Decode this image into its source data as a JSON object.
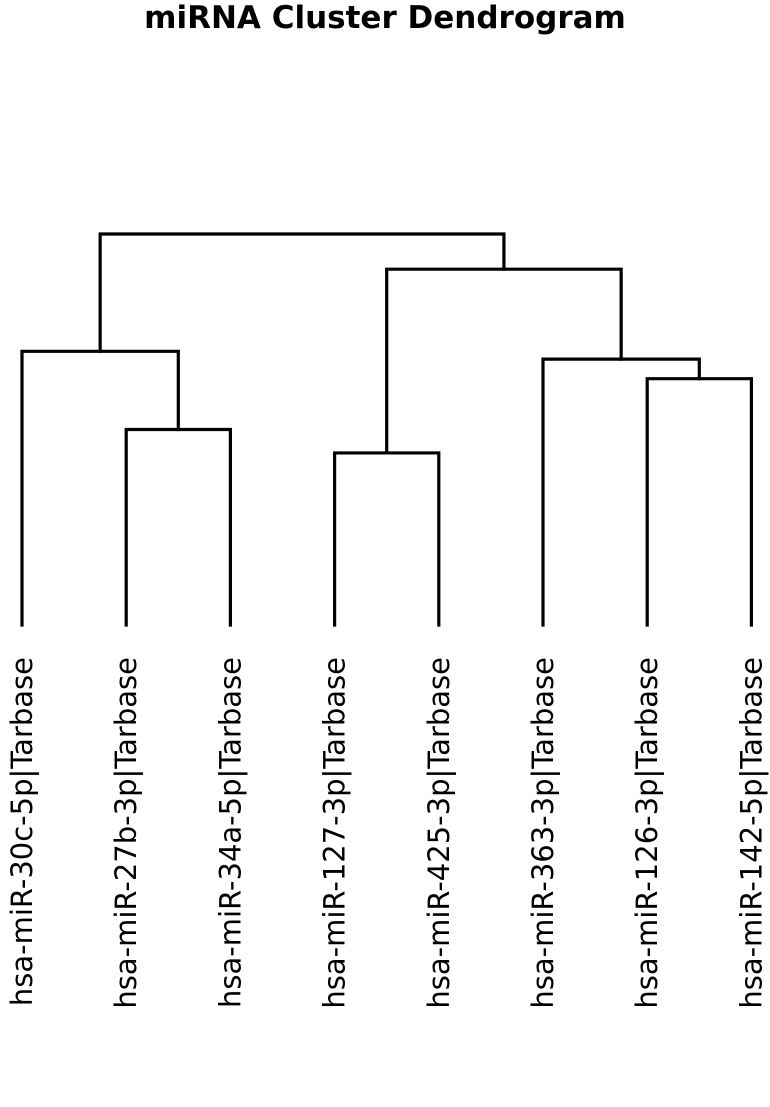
{
  "chart_data": {
    "type": "dendrogram",
    "title": "miRNA Cluster Dendrogram",
    "orientation": "top-down",
    "axes_visible": false,
    "leaves": [
      "hsa-miR-30c-5p|Tarbase",
      "hsa-miR-27b-3p|Tarbase",
      "hsa-miR-34a-5p|Tarbase",
      "hsa-miR-127-3p|Tarbase",
      "hsa-miR-425-3p|Tarbase",
      "hsa-miR-363-3p|Tarbase",
      "hsa-miR-126-3p|Tarbase",
      "hsa-miR-142-5p|Tarbase"
    ],
    "merges": [
      {
        "left": "L6",
        "right": "L7",
        "height": 0.63
      },
      {
        "left": "L1",
        "right": "L2",
        "height": 0.5
      },
      {
        "left": "L3",
        "right": "L4",
        "height": 0.44
      },
      {
        "left": "L5",
        "right": "M0",
        "height": 0.68
      },
      {
        "left": "L0",
        "right": "M1",
        "height": 0.7
      },
      {
        "left": "M2",
        "right": "M3",
        "height": 0.91
      },
      {
        "left": "M4",
        "right": "M5",
        "height": 1.0
      }
    ],
    "color": "#000000"
  }
}
